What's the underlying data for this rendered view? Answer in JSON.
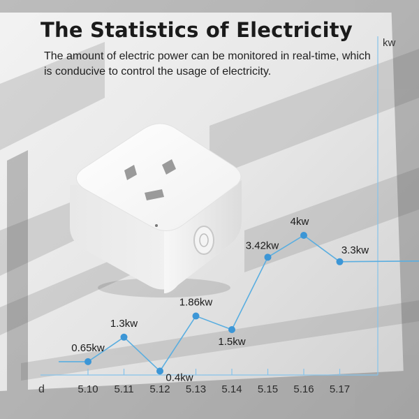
{
  "header": {
    "title": "The Statistics of Electricity",
    "subtitle": "The amount of electric power can be monitored in real-time, which is conducive to control the usage of electricity."
  },
  "chart_data": {
    "type": "line",
    "title": "",
    "xlabel": "d",
    "ylabel": "kw",
    "categories": [
      "5.10",
      "5.11",
      "5.12",
      "5.13",
      "5.14",
      "5.15",
      "5.16",
      "5.17"
    ],
    "series": [
      {
        "values": [
          0.65,
          1.3,
          0.4,
          1.86,
          1.5,
          3.42,
          4,
          3.3
        ],
        "labels": [
          "0.65kw",
          "1.3kw",
          "0.4kw",
          "1.86kw",
          "1.5kw",
          "3.42kw",
          "4kw",
          "3.3kw"
        ]
      }
    ],
    "ylim": [
      0,
      4.8
    ],
    "grid": false,
    "colors": {
      "line": "#5aaee0",
      "point": "#3c96d6",
      "axis": "#86c3ea",
      "label": "#1a1a1a"
    }
  }
}
